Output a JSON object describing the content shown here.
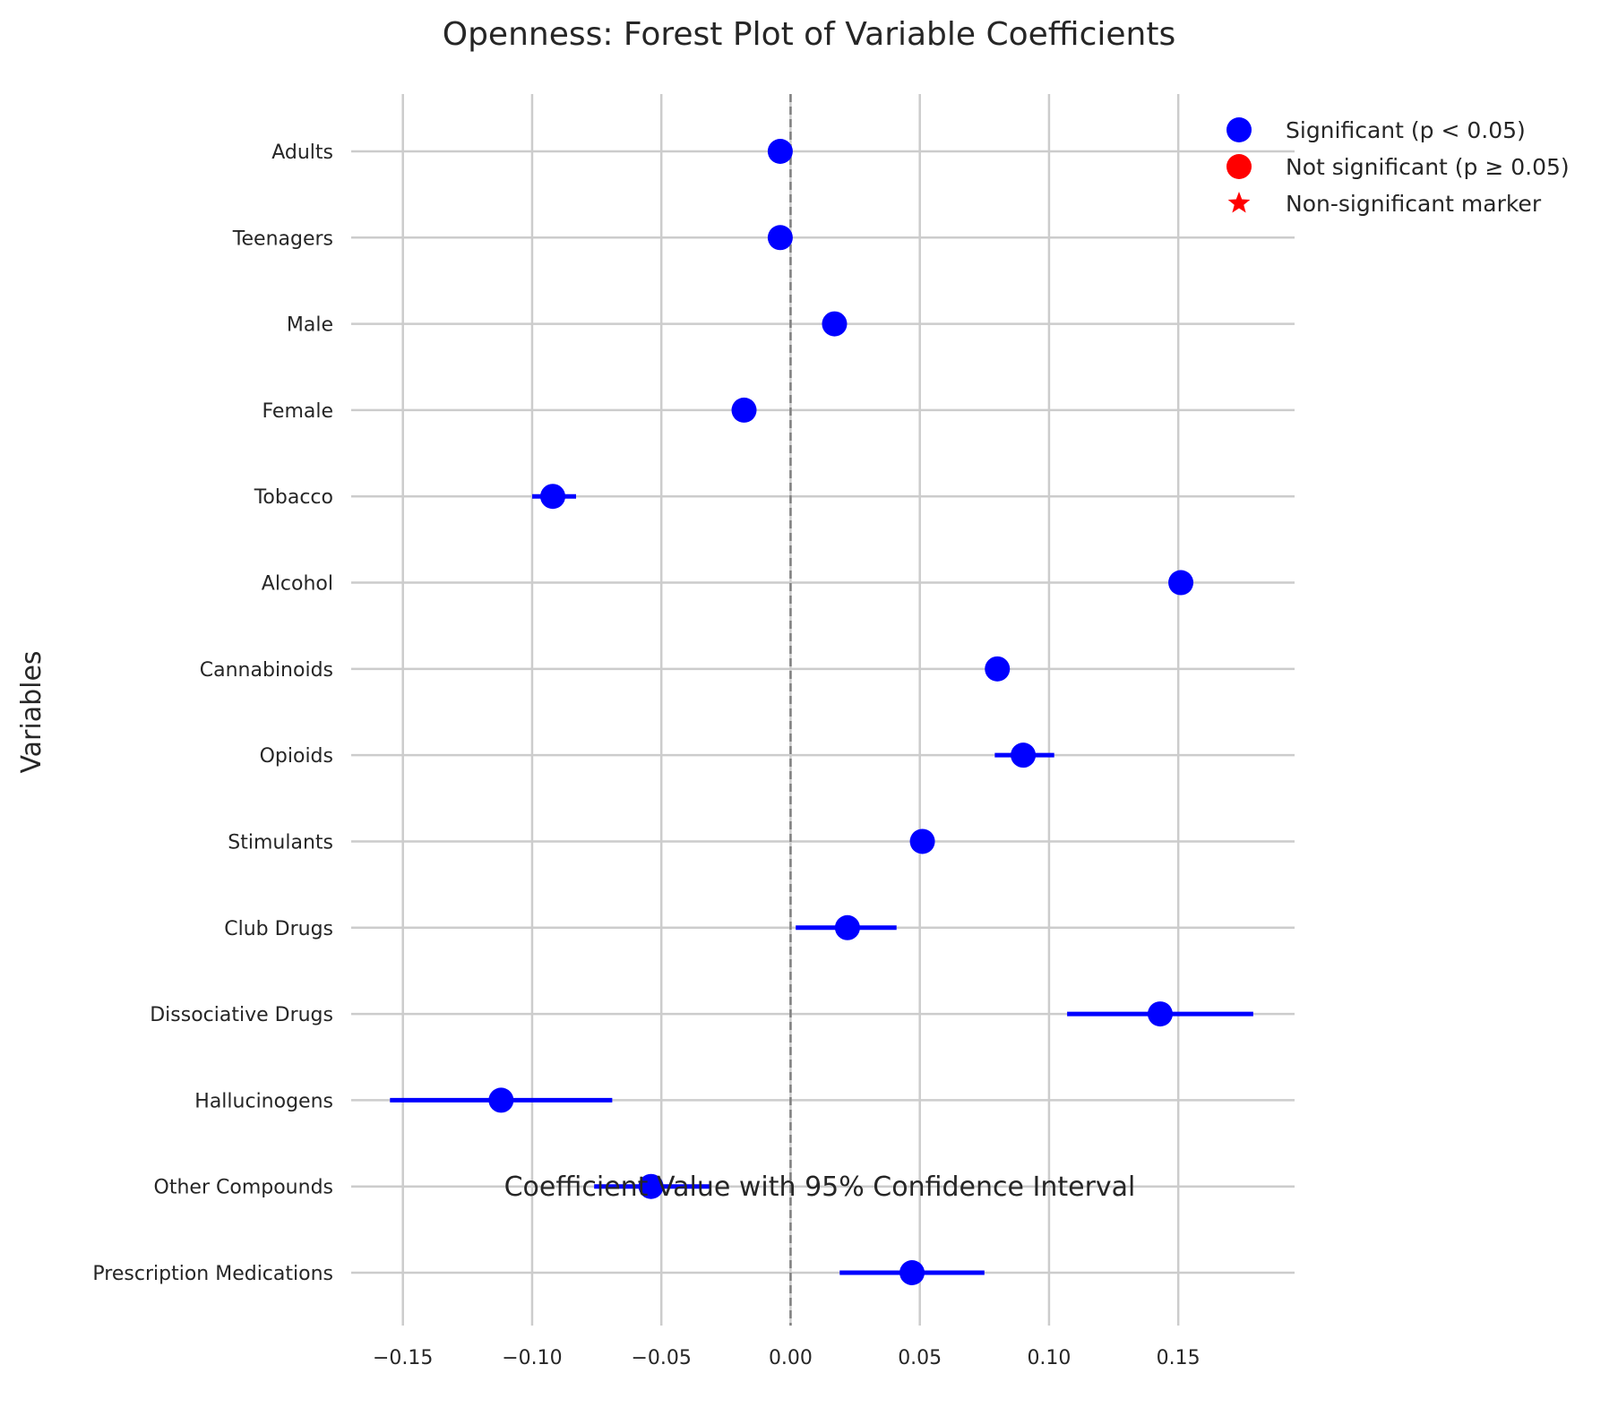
{
  "chart_data": {
    "type": "scatter",
    "title": "Openness: Forest Plot of Variable Coefficients",
    "xlabel": "Coefficient Value with 95% Confidence Interval",
    "ylabel": "Variables",
    "xlim": [
      -0.17,
      0.195
    ],
    "xticks": [
      -0.15,
      -0.1,
      -0.05,
      0.0,
      0.05,
      0.1,
      0.15
    ],
    "xtick_labels": [
      "−0.15",
      "−0.10",
      "−0.05",
      "0.00",
      "0.05",
      "0.10",
      "0.15"
    ],
    "grid": true,
    "reference_line": 0,
    "legend": {
      "placement": "top-right",
      "entries": [
        {
          "label": "Significant (p < 0.05)",
          "marker": "circle",
          "color": "#0000ff"
        },
        {
          "label": "Not significant (p ≥ 0.05)",
          "marker": "circle",
          "color": "#ff0000"
        },
        {
          "label": "Non-significant marker",
          "marker": "star",
          "color": "#ff0000"
        }
      ]
    },
    "points": [
      {
        "label": "Adults",
        "estimate": -0.004,
        "ci_low": -0.004,
        "ci_high": -0.004,
        "significant": true
      },
      {
        "label": "Teenagers",
        "estimate": -0.004,
        "ci_low": -0.004,
        "ci_high": -0.004,
        "significant": true
      },
      {
        "label": "Male",
        "estimate": 0.017,
        "ci_low": 0.017,
        "ci_high": 0.017,
        "significant": true
      },
      {
        "label": "Female",
        "estimate": -0.018,
        "ci_low": -0.018,
        "ci_high": -0.018,
        "significant": true
      },
      {
        "label": "Tobacco",
        "estimate": -0.092,
        "ci_low": -0.1,
        "ci_high": -0.083,
        "significant": true
      },
      {
        "label": "Alcohol",
        "estimate": 0.151,
        "ci_low": 0.151,
        "ci_high": 0.151,
        "significant": true
      },
      {
        "label": "Cannabinoids",
        "estimate": 0.08,
        "ci_low": 0.08,
        "ci_high": 0.08,
        "significant": true
      },
      {
        "label": "Opioids",
        "estimate": 0.09,
        "ci_low": 0.079,
        "ci_high": 0.102,
        "significant": true
      },
      {
        "label": "Stimulants",
        "estimate": 0.051,
        "ci_low": 0.051,
        "ci_high": 0.051,
        "significant": true
      },
      {
        "label": "Club Drugs",
        "estimate": 0.022,
        "ci_low": 0.002,
        "ci_high": 0.041,
        "significant": true
      },
      {
        "label": "Dissociative Drugs",
        "estimate": 0.143,
        "ci_low": 0.107,
        "ci_high": 0.179,
        "significant": true
      },
      {
        "label": "Hallucinogens",
        "estimate": -0.112,
        "ci_low": -0.155,
        "ci_high": -0.069,
        "significant": true
      },
      {
        "label": "Other Compounds",
        "estimate": -0.054,
        "ci_low": -0.076,
        "ci_high": -0.031,
        "significant": true
      },
      {
        "label": "Prescription Medications",
        "estimate": 0.047,
        "ci_low": 0.019,
        "ci_high": 0.075,
        "significant": true
      }
    ]
  }
}
